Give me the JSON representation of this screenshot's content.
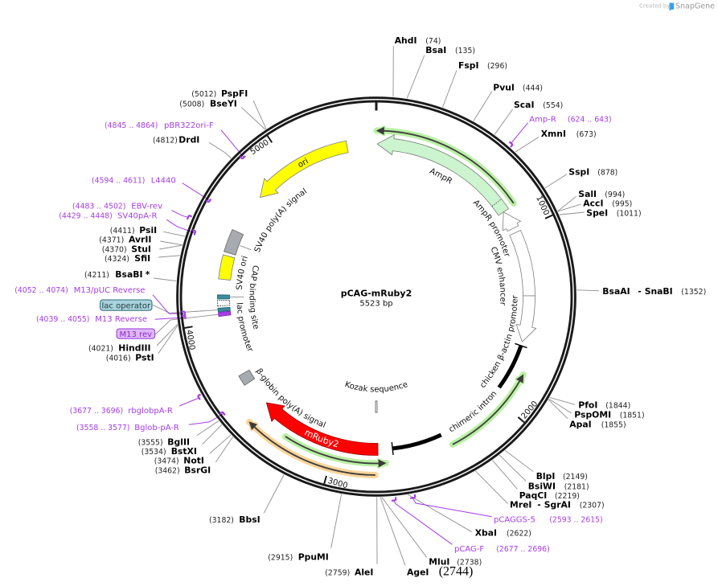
{
  "watermark": {
    "created_by": "Created by",
    "brand": "SnapGene"
  },
  "plasmid": {
    "name": "pCAG-mRuby2",
    "length_label": "5523 bp",
    "length_bp": 5523
  },
  "colors": {
    "primer": "#a43ce8",
    "orf_reverse_halo": "#b9f0a3",
    "orf_forward_halo": "#fcd49a",
    "orf_line": "#3c3c3c",
    "backbone": "#1a1a1a",
    "lac_operator_box_fill": "#a9d3dc",
    "lac_operator_box_border": "#2f6e7c",
    "m13_rev_box_fill": "#dfb6f7",
    "m13_rev_box_border": "#9a3ad8"
  },
  "ticks": [
    {
      "bp": 1000,
      "label": "1000"
    },
    {
      "bp": 2000,
      "label": "2000"
    },
    {
      "bp": 3000,
      "label": "3000"
    },
    {
      "bp": 4000,
      "label": "4000"
    },
    {
      "bp": 5000,
      "label": "5000"
    }
  ],
  "features": [
    {
      "label": "AmpR",
      "start": 5,
      "end": 865,
      "direction": "reverse",
      "color": "#ccf5cf"
    },
    {
      "label": "AmpR promoter",
      "start": 865,
      "end": 974,
      "direction": "reverse",
      "color": "#ffffff"
    },
    {
      "label": "CMV enhancer",
      "start": 1002,
      "end": 1376,
      "direction": "none",
      "color": "#ffffff"
    },
    {
      "label": "chicken β-actin promoter",
      "start": 1376,
      "end": 1645,
      "direction": "forward",
      "color": "#ffffff"
    },
    {
      "label": "chimeric intron",
      "start": 1668,
      "end": 2668,
      "direction": "intron",
      "color": "#000000"
    },
    {
      "label": "Kozak sequence",
      "start": 2755,
      "end": 2768,
      "direction": "none",
      "color": "#ffffff"
    },
    {
      "label": "mRuby2",
      "start": 2752,
      "end": 3467,
      "direction": "forward",
      "color": "#ff0000"
    },
    {
      "label": "β-globin poly(A) signal",
      "start": 3621,
      "end": 3682,
      "direction": "none",
      "color": "#a7abb0"
    },
    {
      "label": "M13 rev",
      "start": 4032,
      "end": 4055,
      "direction": "none",
      "color": "#a53de6"
    },
    {
      "label": "lac operator",
      "start": 4059,
      "end": 4078,
      "direction": "none",
      "color": "#3a8c9e"
    },
    {
      "label": "lac promoter",
      "start": 4090,
      "end": 4121,
      "direction": "none",
      "color": "#ffffff"
    },
    {
      "label": "CAP binding site",
      "start": 4129,
      "end": 4152,
      "direction": "none",
      "color": "#3a8c9e"
    },
    {
      "label": "SV40 ori",
      "start": 4241,
      "end": 4377,
      "direction": "none",
      "color": "#ffff00"
    },
    {
      "label": "SV40 poly(A) signal",
      "start": 4395,
      "end": 4526,
      "direction": "none",
      "color": "#a7abb0"
    },
    {
      "label": "ori",
      "start": 4764,
      "end": 5354,
      "direction": "reverse",
      "color": "#ffff00"
    }
  ],
  "orfs": [
    {
      "start": 2,
      "end": 856,
      "direction": "reverse"
    },
    {
      "start": 1810,
      "end": 2343,
      "direction": "reverse"
    },
    {
      "start": 2711,
      "end": 3268,
      "direction": "reverse"
    },
    {
      "start": 2766,
      "end": 3458,
      "direction": "forward"
    }
  ],
  "sites": [
    {
      "name": "AhdI",
      "position": "(74)",
      "bp": 74
    },
    {
      "name": "BsaI",
      "position": "(135)",
      "bp": 135
    },
    {
      "name": "FspI",
      "position": "(296)",
      "bp": 296
    },
    {
      "name": "PvuI",
      "position": "(444)",
      "bp": 444
    },
    {
      "name": "ScaI",
      "position": "(554)",
      "bp": 554
    },
    {
      "name": "XmnI",
      "position": "(673)",
      "bp": 673
    },
    {
      "name": "SspI",
      "position": "(878)",
      "bp": 878
    },
    {
      "name": "SalI",
      "position": "(994)",
      "bp": 994
    },
    {
      "name": "AccI",
      "position": "(995)",
      "bp": 995
    },
    {
      "name": "SpeI",
      "position": "(1011)",
      "bp": 1011
    },
    {
      "name": "BsaAI",
      "joiner": "-",
      "name2": "SnaBI",
      "position": "(1352)",
      "bp": 1352
    },
    {
      "name": "PfoI",
      "position": "(1844)",
      "bp": 1844
    },
    {
      "name": "PspOMI",
      "position": "(1851)",
      "bp": 1851
    },
    {
      "name": "ApaI",
      "position": "(1855)",
      "bp": 1855
    },
    {
      "name": "BlpI",
      "position": "(2149)",
      "bp": 2149
    },
    {
      "name": "BsiWI",
      "position": "(2181)",
      "bp": 2181
    },
    {
      "name": "PaqCI",
      "position": "(2219)",
      "bp": 2219
    },
    {
      "name": "MreI",
      "joiner": "-",
      "name2": "SgrAI",
      "position": "(2307)",
      "bp": 2307
    },
    {
      "name": "XbaI",
      "position": "(2622)",
      "bp": 2622
    },
    {
      "name": "MluI",
      "position": "(2738)",
      "bp": 2738
    },
    {
      "name": "AgeI",
      "position": "(2744)",
      "bp": 2744
    },
    {
      "name": "AleI",
      "position": "(2759)",
      "bp": 2759
    },
    {
      "name": "PpuMI",
      "position": "(2915)",
      "bp": 2915
    },
    {
      "name": "BbsI",
      "position": "(3182)",
      "bp": 3182
    },
    {
      "name": "BsrGI",
      "position": "(3462)",
      "bp": 3462
    },
    {
      "name": "NotI",
      "position": "(3474)",
      "bp": 3474
    },
    {
      "name": "BstXI",
      "position": "(3534)",
      "bp": 3534
    },
    {
      "name": "BglII",
      "position": "(3555)",
      "bp": 3555
    },
    {
      "name": "PstI",
      "position": "(4016)",
      "bp": 4016
    },
    {
      "name": "HindIII",
      "position": "(4021)",
      "bp": 4021
    },
    {
      "name": "BsaBI",
      "marker": "*",
      "position": "(4211)",
      "bp": 4211
    },
    {
      "name": "SfiI",
      "position": "(4324)",
      "bp": 4324
    },
    {
      "name": "StuI",
      "position": "(4370)",
      "bp": 4370
    },
    {
      "name": "AvrII",
      "position": "(4371)",
      "bp": 4371
    },
    {
      "name": "PsiI",
      "position": "(4411)",
      "bp": 4411
    },
    {
      "name": "DrdI",
      "position": "(4812)",
      "bp": 4812
    },
    {
      "name": "BseYI",
      "position": "(5008)",
      "bp": 5008
    },
    {
      "name": "PspFI",
      "position": "(5012)",
      "bp": 5012
    }
  ],
  "primers": [
    {
      "name": "Amp-R",
      "range": "(624 .. 643)",
      "start": 624,
      "end": 643
    },
    {
      "name": "pCAGGS-5",
      "range": "(2593 .. 2615)",
      "start": 2593,
      "end": 2615
    },
    {
      "name": "pCAG-F",
      "range": "(2677 .. 2696)",
      "start": 2677,
      "end": 2696
    },
    {
      "name": "rbglobpA-R",
      "range": "(3677 .. 3696)",
      "start": 3677,
      "end": 3696
    },
    {
      "name": "Bglob-pA-R",
      "range": "(3558 .. 3577)",
      "start": 3558,
      "end": 3577
    },
    {
      "name": "M13 Reverse",
      "range": "(4039 .. 4055)",
      "start": 4039,
      "end": 4055
    },
    {
      "name": "M13/pUC Reverse",
      "range": "(4052 .. 4074)",
      "start": 4052,
      "end": 4074
    },
    {
      "name": "SV40pA-R",
      "range": "(4429 .. 4448)",
      "start": 4429,
      "end": 4448
    },
    {
      "name": "EBV-rev",
      "range": "(4483 .. 4502)",
      "start": 4483,
      "end": 4502
    },
    {
      "name": "L4440",
      "range": "(4594 .. 4611)",
      "start": 4594,
      "end": 4611
    },
    {
      "name": "pBR322ori-F",
      "range": "(4845 .. 4864)",
      "start": 4845,
      "end": 4864
    }
  ]
}
